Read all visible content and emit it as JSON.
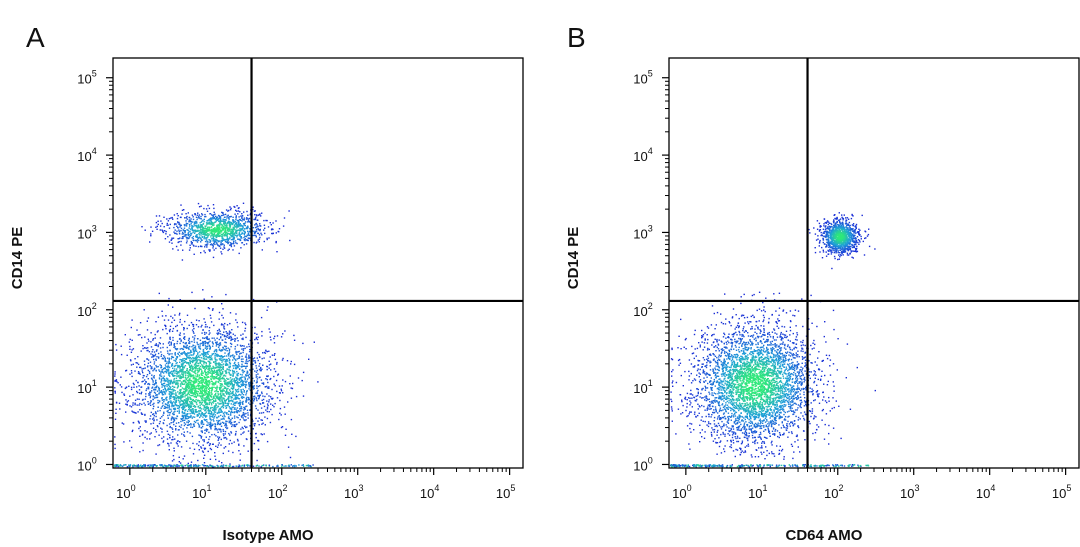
{
  "chart_data": [
    {
      "type": "scatter",
      "panel_label": "A",
      "xlabel": "Isotype AMO",
      "ylabel": "CD14 PE",
      "xscale": "log",
      "yscale": "log",
      "xlim": [
        0.6,
        150000
      ],
      "ylim": [
        0.9,
        180000
      ],
      "x_ticks": [
        1,
        10,
        100,
        1000,
        10000,
        100000
      ],
      "y_ticks": [
        1,
        10,
        100,
        1000,
        10000,
        100000
      ],
      "tick_labels": [
        "10^0",
        "10^1",
        "10^2",
        "10^3",
        "10^4",
        "10^5"
      ],
      "gates": {
        "x": 40,
        "y": 130
      },
      "populations": [
        {
          "center": [
            9,
            11
          ],
          "spread": [
            0.45,
            0.38
          ],
          "count": 3800,
          "density": "high"
        },
        {
          "center": [
            14,
            1100
          ],
          "spread": [
            0.32,
            0.12
          ],
          "count": 1200,
          "density": "high"
        }
      ],
      "grid": false
    },
    {
      "type": "scatter",
      "panel_label": "B",
      "xlabel": "CD64 AMO",
      "ylabel": "CD14 PE",
      "xscale": "log",
      "yscale": "log",
      "xlim": [
        0.6,
        150000
      ],
      "ylim": [
        0.9,
        180000
      ],
      "x_ticks": [
        1,
        10,
        100,
        1000,
        10000,
        100000
      ],
      "y_ticks": [
        1,
        10,
        100,
        1000,
        10000,
        100000
      ],
      "tick_labels": [
        "10^0",
        "10^1",
        "10^2",
        "10^3",
        "10^4",
        "10^5"
      ],
      "gates": {
        "x": 40,
        "y": 130
      },
      "populations": [
        {
          "center": [
            8,
            11
          ],
          "spread": [
            0.4,
            0.38
          ],
          "count": 3800,
          "density": "high"
        },
        {
          "center": [
            105,
            900
          ],
          "spread": [
            0.12,
            0.11
          ],
          "count": 1100,
          "density": "high"
        }
      ],
      "grid": false
    }
  ],
  "colors": {
    "low_density": "#1a2bd6",
    "mid_density": "#1e9fd8",
    "high_density": "#2ee87a",
    "gate_line": "#000000",
    "axis": "#000000"
  }
}
